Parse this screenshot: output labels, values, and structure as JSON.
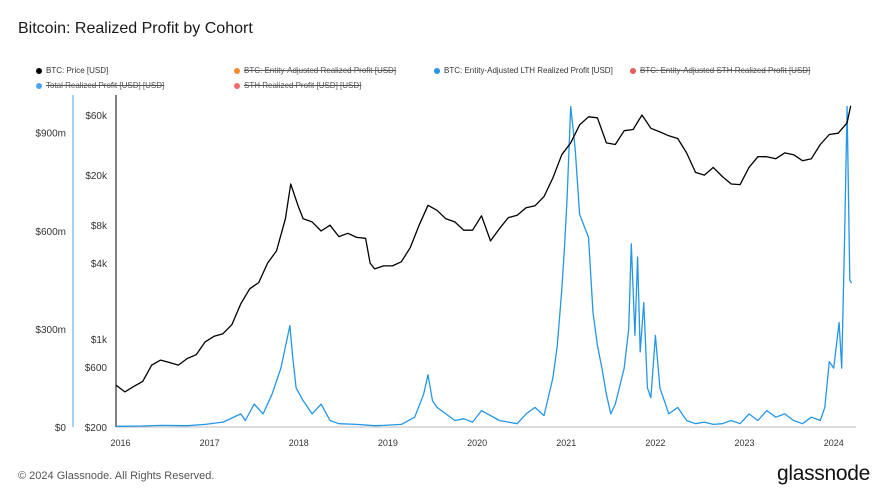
{
  "title": "Bitcoin: Realized Profit by Cohort",
  "footer": "© 2024 Glassnode. All Rights Reserved.",
  "brand": "glassnode",
  "colors": {
    "price": "#000000",
    "lth": "#2496e8",
    "adj_total": "#f28c28",
    "adj_sth": "#e85b5b",
    "total": "#4aa3f0",
    "sth": "#f06a6a"
  },
  "legend": [
    {
      "label": "BTC: Price [USD]",
      "color": "#000000",
      "active": true
    },
    {
      "label": "BTC: Entity-Adjusted Realized Profit [USD]",
      "color": "#f28c28",
      "active": false
    },
    {
      "label": "BTC: Entity-Adjusted LTH Realized Profit [USD]",
      "color": "#2496e8",
      "active": true
    },
    {
      "label": "BTC: Entity-Adjusted STH Realized Profit [USD]",
      "color": "#e85b5b",
      "active": false
    },
    {
      "label": "Total Realized Profit [USD] [USD]",
      "color": "#4aa3f0",
      "active": false
    },
    {
      "label": "STH Realized Profit [USD] [USD]",
      "color": "#f06a6a",
      "active": false
    }
  ],
  "chart_data": {
    "type": "line",
    "title": "Bitcoin: Realized Profit by Cohort",
    "grid": false,
    "legend_position": "top",
    "x_ticks": [
      "2016",
      "2017",
      "2018",
      "2019",
      "2020",
      "2021",
      "2022",
      "2023",
      "2024"
    ],
    "x_range": [
      2016.0,
      2024.3
    ],
    "left_axis": {
      "ticks": [
        "$0",
        "$300m",
        "$600m",
        "$900m"
      ],
      "range": [
        0,
        1000000000
      ]
    },
    "right_axis": {
      "scale": "log",
      "ticks": [
        "$200",
        "$600",
        "$1k",
        "$4k",
        "$8k",
        "$20k",
        "$60k"
      ],
      "range": [
        200,
        72000
      ]
    },
    "series": [
      {
        "name": "BTC: Price [USD]",
        "axis": "price",
        "x": [
          2016.0,
          2016.1,
          2016.2,
          2016.3,
          2016.4,
          2016.5,
          2016.6,
          2016.7,
          2016.8,
          2016.9,
          2017.0,
          2017.1,
          2017.2,
          2017.3,
          2017.4,
          2017.5,
          2017.6,
          2017.7,
          2017.8,
          2017.9,
          2017.96,
          2018.05,
          2018.1,
          2018.2,
          2018.3,
          2018.4,
          2018.5,
          2018.6,
          2018.7,
          2018.8,
          2018.85,
          2018.9,
          2019.0,
          2019.1,
          2019.2,
          2019.3,
          2019.4,
          2019.5,
          2019.6,
          2019.7,
          2019.8,
          2019.9,
          2020.0,
          2020.1,
          2020.2,
          2020.3,
          2020.4,
          2020.5,
          2020.6,
          2020.7,
          2020.8,
          2020.9,
          2021.0,
          2021.1,
          2021.2,
          2021.3,
          2021.4,
          2021.5,
          2021.6,
          2021.7,
          2021.8,
          2021.9,
          2022.0,
          2022.1,
          2022.2,
          2022.3,
          2022.4,
          2022.5,
          2022.6,
          2022.7,
          2022.8,
          2022.9,
          2023.0,
          2023.1,
          2023.2,
          2023.3,
          2023.4,
          2023.5,
          2023.6,
          2023.7,
          2023.8,
          2023.9,
          2024.0,
          2024.1,
          2024.2,
          2024.24
        ],
        "values": [
          430,
          380,
          420,
          460,
          620,
          680,
          650,
          620,
          700,
          750,
          950,
          1050,
          1100,
          1300,
          1900,
          2500,
          2800,
          4000,
          5000,
          9000,
          17000,
          11000,
          9000,
          8500,
          7200,
          8000,
          6500,
          6900,
          6400,
          6300,
          4000,
          3600,
          3800,
          3800,
          4100,
          5300,
          8000,
          11500,
          10500,
          9000,
          8500,
          7300,
          7300,
          9500,
          6000,
          7500,
          9200,
          9600,
          11000,
          11400,
          13500,
          19000,
          29000,
          36000,
          50000,
          58000,
          57000,
          36000,
          35000,
          45000,
          46000,
          60000,
          47000,
          44000,
          41000,
          39000,
          30000,
          21000,
          20000,
          23000,
          19500,
          17000,
          16800,
          23000,
          28000,
          28000,
          27000,
          30000,
          29000,
          26000,
          27000,
          35000,
          42000,
          43000,
          52000,
          71000
        ]
      },
      {
        "name": "BTC: Entity-Adjusted LTH Realized Profit [USD]",
        "axis": "profit",
        "x": [
          2016.0,
          2016.3,
          2016.5,
          2016.8,
          2017.0,
          2017.2,
          2017.4,
          2017.45,
          2017.55,
          2017.65,
          2017.75,
          2017.85,
          2017.95,
          2017.98,
          2018.02,
          2018.1,
          2018.2,
          2018.3,
          2018.4,
          2018.5,
          2018.7,
          2018.9,
          2019.0,
          2019.2,
          2019.35,
          2019.45,
          2019.5,
          2019.55,
          2019.6,
          2019.7,
          2019.8,
          2019.9,
          2020.0,
          2020.1,
          2020.3,
          2020.5,
          2020.6,
          2020.7,
          2020.8,
          2020.9,
          2020.95,
          2021.0,
          2021.03,
          2021.06,
          2021.1,
          2021.15,
          2021.2,
          2021.3,
          2021.35,
          2021.4,
          2021.45,
          2021.5,
          2021.55,
          2021.6,
          2021.7,
          2021.75,
          2021.78,
          2021.82,
          2021.85,
          2021.88,
          2021.92,
          2021.96,
          2022.0,
          2022.05,
          2022.1,
          2022.2,
          2022.3,
          2022.4,
          2022.5,
          2022.6,
          2022.7,
          2022.8,
          2022.9,
          2023.0,
          2023.1,
          2023.2,
          2023.3,
          2023.4,
          2023.5,
          2023.6,
          2023.7,
          2023.8,
          2023.9,
          2023.95,
          2024.0,
          2024.05,
          2024.08,
          2024.11,
          2024.14,
          2024.17,
          2024.2,
          2024.23,
          2024.25
        ],
        "values": [
          2000000,
          3000000,
          5000000,
          4000000,
          8000000,
          15000000,
          40000000,
          20000000,
          70000000,
          40000000,
          100000000,
          180000000,
          310000000,
          220000000,
          120000000,
          80000000,
          40000000,
          70000000,
          20000000,
          10000000,
          8000000,
          4000000,
          5000000,
          8000000,
          30000000,
          100000000,
          160000000,
          80000000,
          60000000,
          40000000,
          20000000,
          25000000,
          15000000,
          50000000,
          20000000,
          10000000,
          40000000,
          60000000,
          35000000,
          150000000,
          250000000,
          420000000,
          550000000,
          700000000,
          980000000,
          850000000,
          650000000,
          580000000,
          350000000,
          250000000,
          180000000,
          100000000,
          40000000,
          70000000,
          180000000,
          300000000,
          560000000,
          280000000,
          520000000,
          230000000,
          380000000,
          120000000,
          90000000,
          280000000,
          120000000,
          40000000,
          60000000,
          20000000,
          10000000,
          15000000,
          8000000,
          10000000,
          20000000,
          10000000,
          40000000,
          20000000,
          50000000,
          30000000,
          40000000,
          20000000,
          10000000,
          30000000,
          20000000,
          60000000,
          200000000,
          180000000,
          250000000,
          320000000,
          180000000,
          550000000,
          980000000,
          450000000,
          440000000
        ]
      }
    ]
  }
}
